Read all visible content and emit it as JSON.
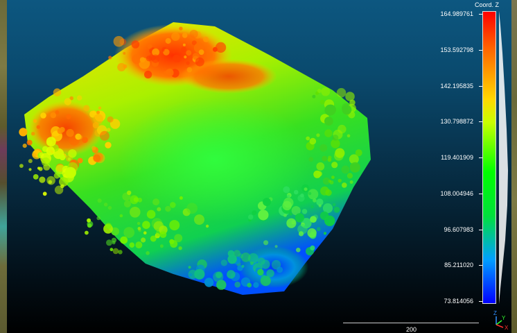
{
  "scale": {
    "title": "Coord. Z",
    "ticks": [
      "164.989761",
      "153.592798",
      "142.195835",
      "130.798872",
      "119.401909",
      "108.004946",
      "96.607983",
      "85.211020",
      "73.814056"
    ],
    "colors": {
      "max": "#ff0000",
      "mid_high": "#ffd800",
      "mid": "#00ff00",
      "low": "#0000ff"
    }
  },
  "scalebar": {
    "label": "200"
  },
  "axes": {
    "z": "Z",
    "y": "Y",
    "x": "X"
  },
  "icons": [
    "axis-triad-icon"
  ]
}
